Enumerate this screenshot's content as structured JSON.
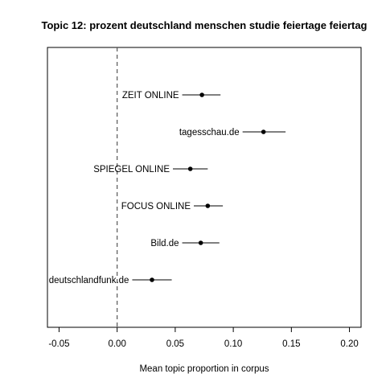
{
  "chart_data": {
    "type": "scatter",
    "title": "Topic 12: prozent deutschland menschen studie feiertage feiertag",
    "xlabel": "Mean topic proportion in corpus",
    "ylabel": "",
    "xlim": [
      -0.06,
      0.21
    ],
    "xticks": [
      "-0.05",
      "0.00",
      "0.05",
      "0.10",
      "0.15",
      "0.20"
    ],
    "reference_line": 0,
    "grid": false,
    "points": [
      {
        "label": "ZEIT ONLINE",
        "estimate": 0.073,
        "lower": 0.056,
        "upper": 0.089
      },
      {
        "label": "tagesschau.de",
        "estimate": 0.126,
        "lower": 0.108,
        "upper": 0.145
      },
      {
        "label": "SPIEGEL ONLINE",
        "estimate": 0.063,
        "lower": 0.048,
        "upper": 0.078
      },
      {
        "label": "FOCUS ONLINE",
        "estimate": 0.078,
        "lower": 0.066,
        "upper": 0.091
      },
      {
        "label": "Bild.de",
        "estimate": 0.072,
        "lower": 0.056,
        "upper": 0.088
      },
      {
        "label": "deutschlandfunk.de",
        "estimate": 0.03,
        "lower": 0.013,
        "upper": 0.047
      }
    ]
  }
}
